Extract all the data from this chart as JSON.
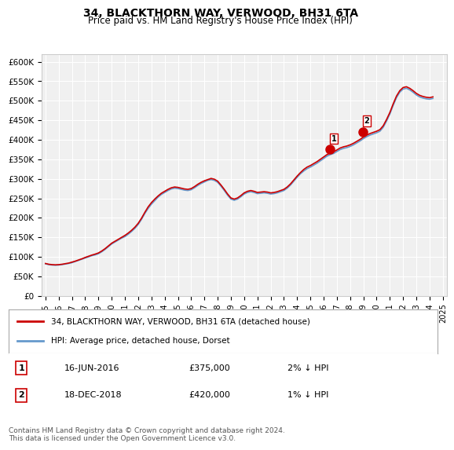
{
  "title": "34, BLACKTHORN WAY, VERWOOD, BH31 6TA",
  "subtitle": "Price paid vs. HM Land Registry's House Price Index (HPI)",
  "ylabel": "",
  "xlabel": "",
  "ylim": [
    0,
    620000
  ],
  "yticks": [
    0,
    50000,
    100000,
    150000,
    200000,
    250000,
    300000,
    350000,
    400000,
    450000,
    500000,
    550000,
    600000
  ],
  "ytick_labels": [
    "£0",
    "£50K",
    "£100K",
    "£150K",
    "£200K",
    "£250K",
    "£300K",
    "£350K",
    "£400K",
    "£450K",
    "£500K",
    "£550K",
    "£600K"
  ],
  "line1_color": "#cc0000",
  "line2_color": "#6699cc",
  "marker_color": "#cc0000",
  "background_color": "#ffffff",
  "plot_bg_color": "#f0f0f0",
  "grid_color": "#ffffff",
  "legend_label1": "34, BLACKTHORN WAY, VERWOOD, BH31 6TA (detached house)",
  "legend_label2": "HPI: Average price, detached house, Dorset",
  "purchase1_date": "16-JUN-2016",
  "purchase1_price": "£375,000",
  "purchase1_pct": "2% ↓ HPI",
  "purchase2_date": "18-DEC-2018",
  "purchase2_price": "£420,000",
  "purchase2_pct": "1% ↓ HPI",
  "footnote": "Contains HM Land Registry data © Crown copyright and database right 2024.\nThis data is licensed under the Open Government Licence v3.0.",
  "hpi_years": [
    1995.0,
    1995.25,
    1995.5,
    1995.75,
    1996.0,
    1996.25,
    1996.5,
    1996.75,
    1997.0,
    1997.25,
    1997.5,
    1997.75,
    1998.0,
    1998.25,
    1998.5,
    1998.75,
    1999.0,
    1999.25,
    1999.5,
    1999.75,
    2000.0,
    2000.25,
    2000.5,
    2000.75,
    2001.0,
    2001.25,
    2001.5,
    2001.75,
    2002.0,
    2002.25,
    2002.5,
    2002.75,
    2003.0,
    2003.25,
    2003.5,
    2003.75,
    2004.0,
    2004.25,
    2004.5,
    2004.75,
    2005.0,
    2005.25,
    2005.5,
    2005.75,
    2006.0,
    2006.25,
    2006.5,
    2006.75,
    2007.0,
    2007.25,
    2007.5,
    2007.75,
    2008.0,
    2008.25,
    2008.5,
    2008.75,
    2009.0,
    2009.25,
    2009.5,
    2009.75,
    2010.0,
    2010.25,
    2010.5,
    2010.75,
    2011.0,
    2011.25,
    2011.5,
    2011.75,
    2012.0,
    2012.25,
    2012.5,
    2012.75,
    2013.0,
    2013.25,
    2013.5,
    2013.75,
    2014.0,
    2014.25,
    2014.5,
    2014.75,
    2015.0,
    2015.25,
    2015.5,
    2015.75,
    2016.0,
    2016.25,
    2016.5,
    2016.75,
    2017.0,
    2017.25,
    2017.5,
    2017.75,
    2018.0,
    2018.25,
    2018.5,
    2018.75,
    2019.0,
    2019.25,
    2019.5,
    2019.75,
    2020.0,
    2020.25,
    2020.5,
    2020.75,
    2021.0,
    2021.25,
    2021.5,
    2021.75,
    2022.0,
    2022.25,
    2022.5,
    2022.75,
    2023.0,
    2023.25,
    2023.5,
    2023.75,
    2024.0,
    2024.25
  ],
  "hpi_values": [
    82000,
    80000,
    79000,
    78500,
    79000,
    80000,
    81500,
    83000,
    85000,
    88000,
    91000,
    94000,
    97000,
    100000,
    103000,
    105000,
    108000,
    113000,
    119000,
    126000,
    133000,
    138000,
    143000,
    148000,
    152000,
    158000,
    165000,
    173000,
    183000,
    196000,
    211000,
    224000,
    235000,
    244000,
    253000,
    260000,
    265000,
    270000,
    274000,
    276000,
    275000,
    273000,
    271000,
    270000,
    272000,
    277000,
    283000,
    288000,
    292000,
    296000,
    298000,
    296000,
    291000,
    281000,
    270000,
    258000,
    248000,
    245000,
    248000,
    254000,
    261000,
    265000,
    267000,
    265000,
    262000,
    263000,
    264000,
    263000,
    261000,
    262000,
    264000,
    267000,
    270000,
    276000,
    284000,
    294000,
    304000,
    313000,
    320000,
    326000,
    330000,
    335000,
    340000,
    346000,
    352000,
    358000,
    362000,
    365000,
    370000,
    375000,
    378000,
    380000,
    383000,
    387000,
    392000,
    397000,
    403000,
    408000,
    412000,
    415000,
    418000,
    422000,
    432000,
    448000,
    466000,
    488000,
    508000,
    522000,
    530000,
    532000,
    528000,
    522000,
    515000,
    510000,
    507000,
    505000,
    504000,
    506000
  ],
  "property_years": [
    1995.0,
    1995.25,
    1995.5,
    1995.75,
    1996.0,
    1996.25,
    1996.5,
    1996.75,
    1997.0,
    1997.25,
    1997.5,
    1997.75,
    1998.0,
    1998.25,
    1998.5,
    1998.75,
    1999.0,
    1999.25,
    1999.5,
    1999.75,
    2000.0,
    2000.25,
    2000.5,
    2000.75,
    2001.0,
    2001.25,
    2001.5,
    2001.75,
    2002.0,
    2002.25,
    2002.5,
    2002.75,
    2003.0,
    2003.25,
    2003.5,
    2003.75,
    2004.0,
    2004.25,
    2004.5,
    2004.75,
    2005.0,
    2005.25,
    2005.5,
    2005.75,
    2006.0,
    2006.25,
    2006.5,
    2006.75,
    2007.0,
    2007.25,
    2007.5,
    2007.75,
    2008.0,
    2008.25,
    2008.5,
    2008.75,
    2009.0,
    2009.25,
    2009.5,
    2009.75,
    2010.0,
    2010.25,
    2010.5,
    2010.75,
    2011.0,
    2011.25,
    2011.5,
    2011.75,
    2012.0,
    2012.25,
    2012.5,
    2012.75,
    2013.0,
    2013.25,
    2013.5,
    2013.75,
    2014.0,
    2014.25,
    2014.5,
    2014.75,
    2015.0,
    2015.25,
    2015.5,
    2015.75,
    2016.0,
    2016.25,
    2016.5,
    2016.75,
    2017.0,
    2017.25,
    2017.5,
    2017.75,
    2018.0,
    2018.25,
    2018.5,
    2018.75,
    2019.0,
    2019.25,
    2019.5,
    2019.75,
    2020.0,
    2020.25,
    2020.5,
    2020.75,
    2021.0,
    2021.25,
    2021.5,
    2021.75,
    2022.0,
    2022.25,
    2022.5,
    2022.75,
    2023.0,
    2023.25,
    2023.5,
    2023.75,
    2024.0,
    2024.25
  ],
  "property_values": [
    83000,
    81000,
    80000,
    79500,
    80000,
    81000,
    82500,
    84000,
    86500,
    89000,
    92000,
    95000,
    98500,
    101500,
    104500,
    107000,
    110000,
    115000,
    121000,
    128000,
    135000,
    140000,
    145000,
    150000,
    155000,
    161000,
    168000,
    176000,
    186000,
    199000,
    214000,
    228000,
    239000,
    248000,
    256000,
    263000,
    268000,
    273000,
    277000,
    279000,
    278000,
    276000,
    274000,
    273000,
    275000,
    280000,
    286000,
    291000,
    295000,
    298000,
    301000,
    299000,
    294000,
    284000,
    273000,
    261000,
    251000,
    248000,
    251000,
    257000,
    264000,
    268000,
    270000,
    268000,
    265000,
    266000,
    267000,
    266000,
    264000,
    265000,
    267000,
    270000,
    273000,
    279000,
    287000,
    297000,
    307000,
    316000,
    324000,
    330000,
    334000,
    339000,
    344000,
    350000,
    356000,
    362000,
    366000,
    369000,
    374000,
    379000,
    382000,
    384000,
    387000,
    391000,
    396000,
    401000,
    407000,
    412000,
    416000,
    419000,
    422000,
    426000,
    436000,
    452000,
    470000,
    492000,
    512000,
    526000,
    534000,
    536000,
    532000,
    526000,
    519000,
    514000,
    511000,
    509000,
    508000,
    510000
  ],
  "purchase1_x": 2016.5,
  "purchase1_y": 375000,
  "purchase2_x": 2018.97,
  "purchase2_y": 420000,
  "marker1_x": 2016.46,
  "marker2_x": 2018.96,
  "xtick_years": [
    1995,
    1996,
    1997,
    1998,
    1999,
    2000,
    2001,
    2002,
    2003,
    2004,
    2005,
    2006,
    2007,
    2008,
    2009,
    2010,
    2011,
    2012,
    2013,
    2014,
    2015,
    2016,
    2017,
    2018,
    2019,
    2020,
    2021,
    2022,
    2023,
    2024,
    2025
  ]
}
